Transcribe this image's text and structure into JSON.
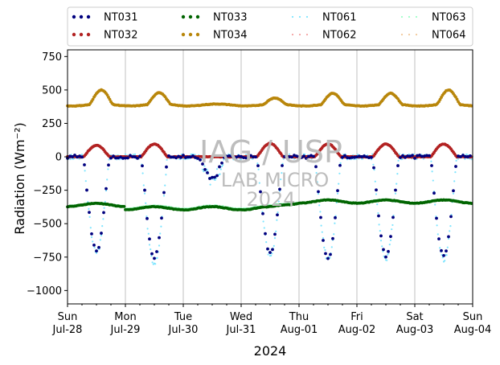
{
  "chart_data": {
    "type": "scatter",
    "xlabel": "2024",
    "ylabel": "Radiation (Wm⁻²)",
    "ylim": [
      -1100,
      800
    ],
    "yticks": [
      -1000,
      -750,
      -500,
      -250,
      0,
      250,
      500,
      750
    ],
    "ytick_labels": [
      "−1000",
      "−750",
      "−500",
      "−250",
      "0",
      "250",
      "500",
      "750"
    ],
    "xlim": [
      "2024-07-28",
      "2024-08-04"
    ],
    "xticks": [
      {
        "day": "Sun",
        "date": "Jul-28"
      },
      {
        "day": "Mon",
        "date": "Jul-29"
      },
      {
        "day": "Tue",
        "date": "Jul-30"
      },
      {
        "day": "Wed",
        "date": "Jul-31"
      },
      {
        "day": "Thu",
        "date": "Aug-01"
      },
      {
        "day": "Fri",
        "date": "Aug-02"
      },
      {
        "day": "Sat",
        "date": "Aug-03"
      },
      {
        "day": "Sun",
        "date": "Aug-04"
      }
    ],
    "grid": "vertical",
    "legend_position": "top",
    "watermark": [
      "IAG / USP",
      "LAB MICRO",
      "2024"
    ],
    "series": [
      {
        "name": "NT031",
        "color": "#00007f",
        "style": "dots",
        "daily_peak": [
          -700,
          -750,
          -190,
          -720,
          -760,
          -740,
          -750
        ]
      },
      {
        "name": "NT032",
        "color": "#b22222",
        "style": "dots",
        "daily_peak": [
          85,
          95,
          0,
          100,
          95,
          95,
          95
        ],
        "night_level": 0
      },
      {
        "name": "NT033",
        "color": "#006400",
        "style": "dots",
        "night_level": -360,
        "day_level": -385,
        "late_level": -335
      },
      {
        "name": "NT034",
        "color": "#b8860b",
        "style": "dots",
        "daily_max": [
          500,
          480,
          395,
          440,
          475,
          475,
          500
        ],
        "night_level": 390
      },
      {
        "name": "NT061",
        "color": "#7fe5ff",
        "style": "dotted",
        "daily_peak": [
          -720,
          -800,
          -230,
          -740,
          -770,
          -760,
          -770
        ]
      },
      {
        "name": "NT062",
        "color": "#f4a3a3",
        "style": "dotted",
        "daily_peak": [
          90,
          100,
          0,
          105,
          100,
          100,
          100
        ]
      },
      {
        "name": "NT063",
        "color": "#9fffc8",
        "style": "dotted",
        "night_level": -355,
        "day_level": -375,
        "late_level": -330
      },
      {
        "name": "NT064",
        "color": "#f2c89a",
        "style": "dotted",
        "daily_max": [
          505,
          485,
          400,
          445,
          480,
          480,
          505
        ],
        "night_level": 395
      }
    ]
  }
}
